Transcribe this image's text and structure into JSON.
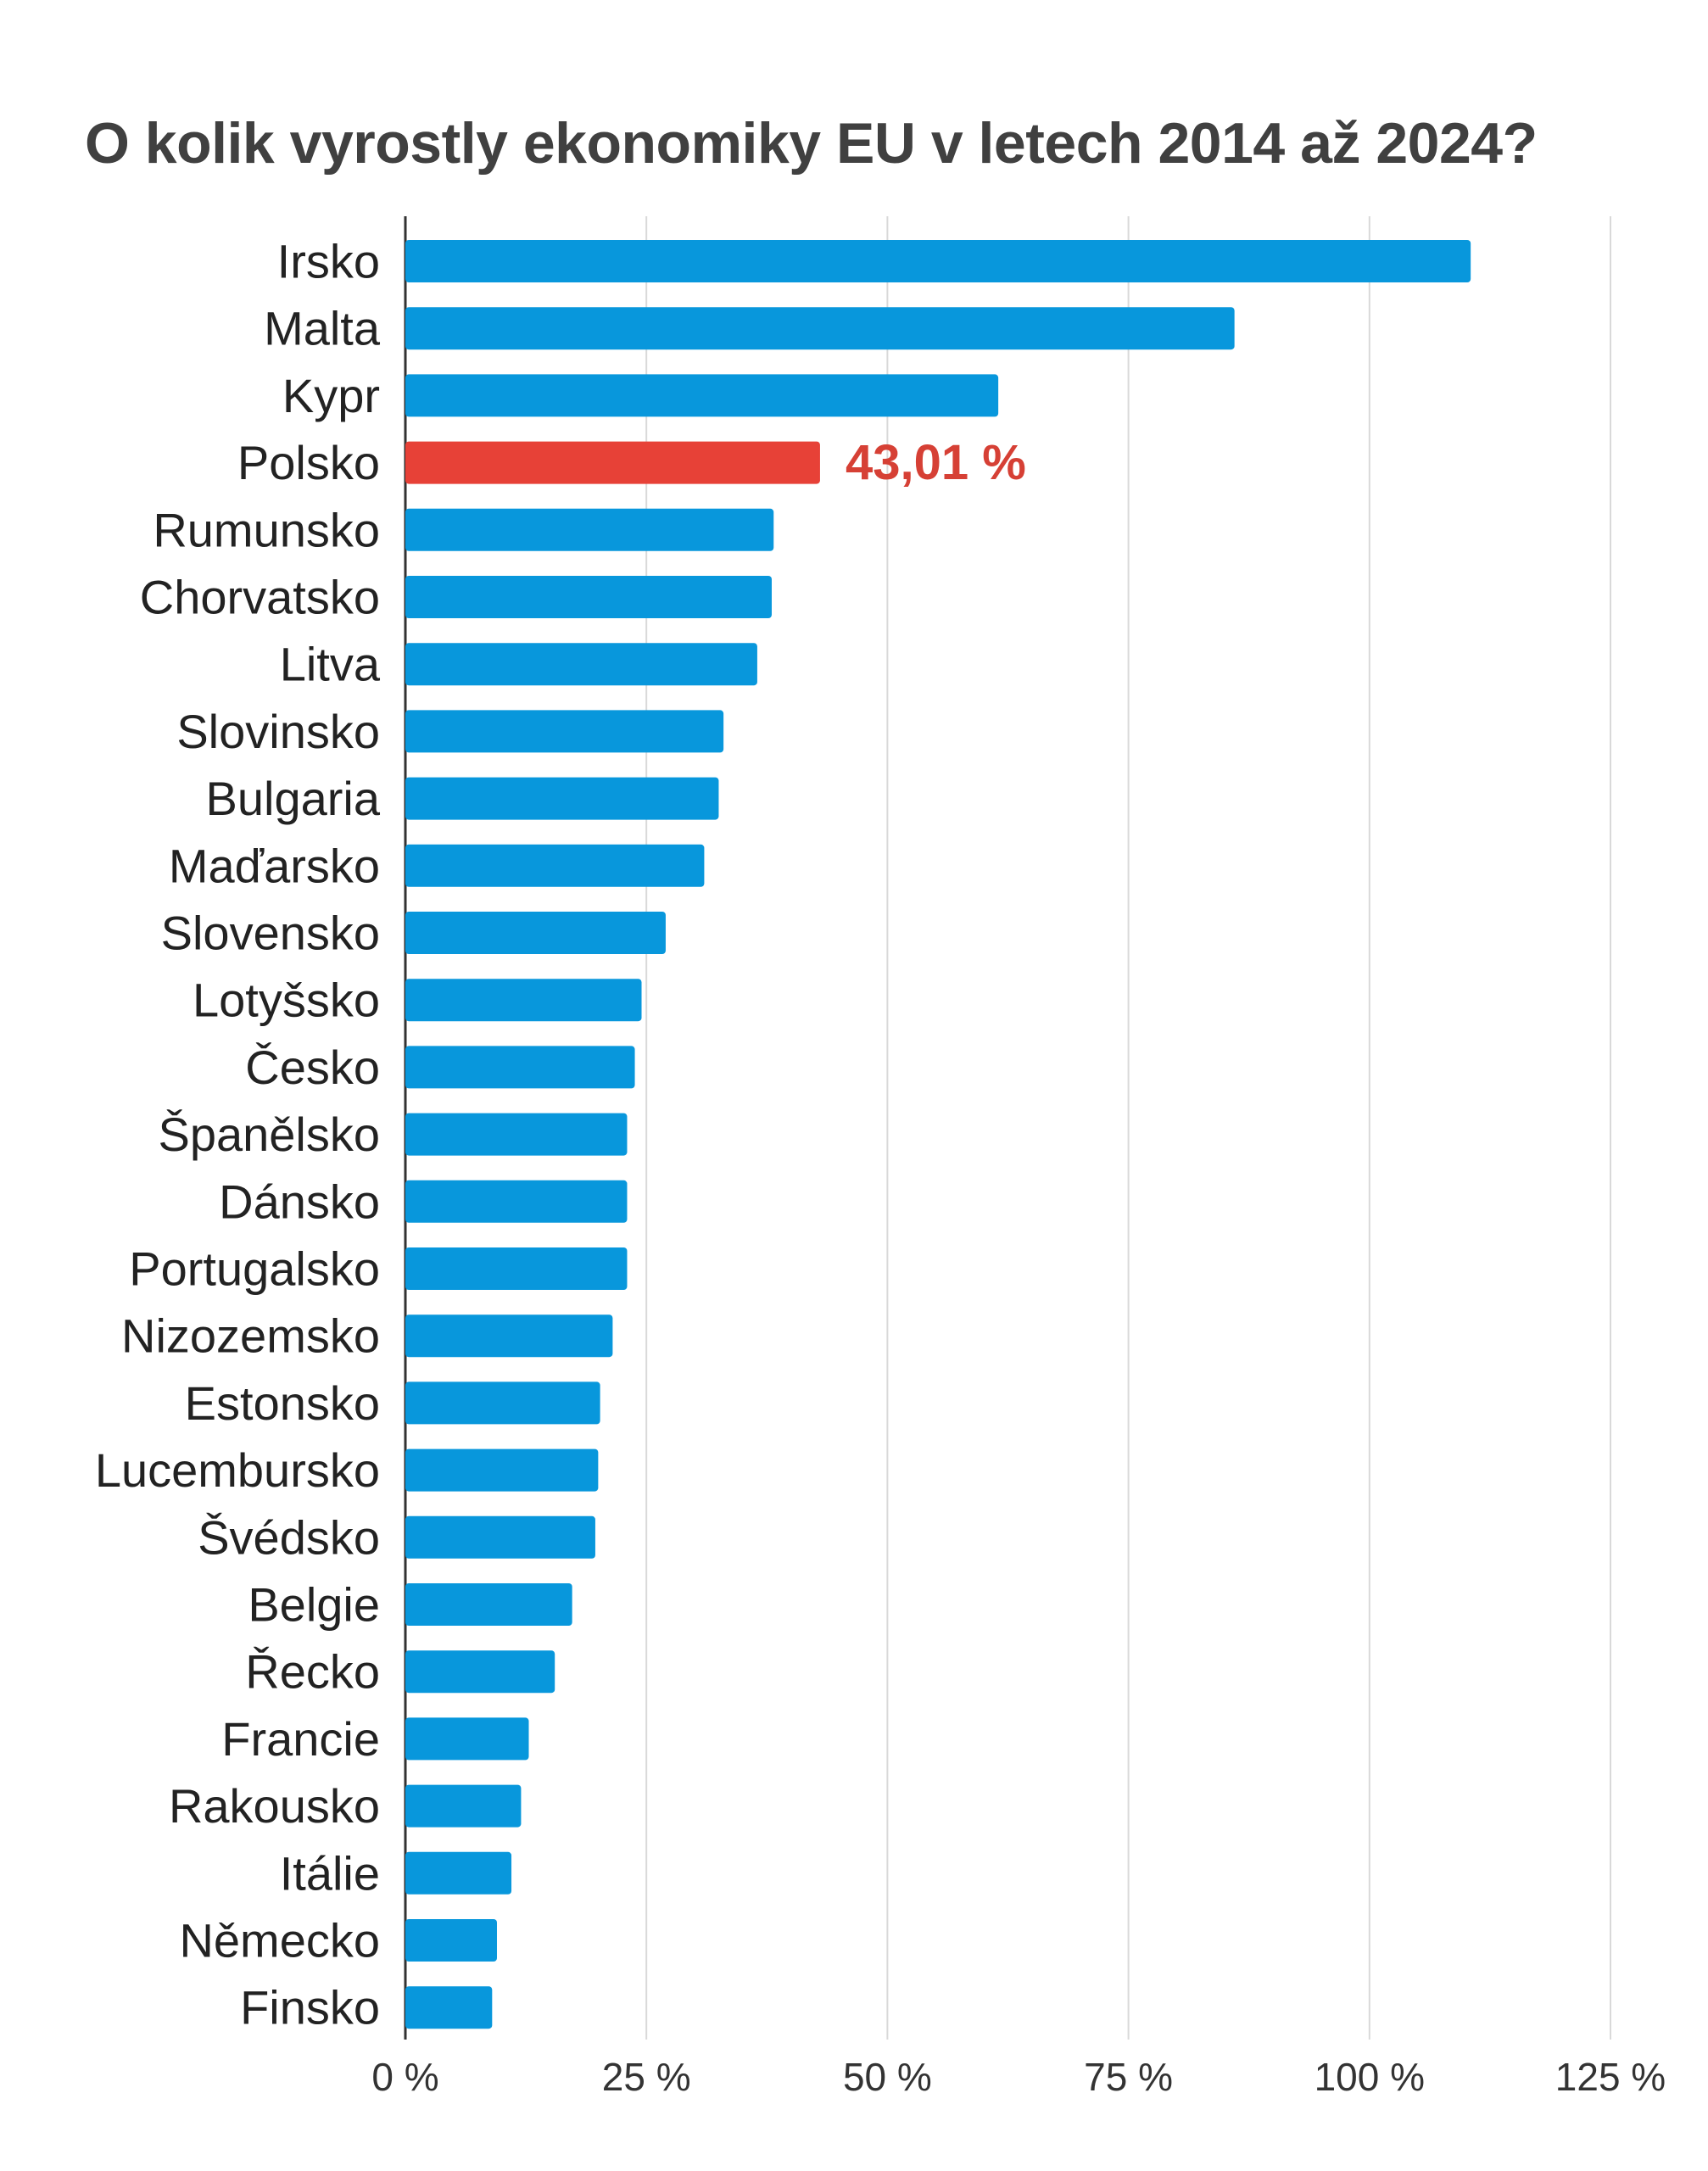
{
  "chart_data": {
    "type": "bar",
    "orientation": "horizontal",
    "title": "O kolik vyrostly ekonomiky EU v letech 2014 až 2024?",
    "categories": [
      "Irsko",
      "Malta",
      "Kypr",
      "Polsko",
      "Rumunsko",
      "Chorvatsko",
      "Litva",
      "Slovinsko",
      "Bulgaria",
      "Maďarsko",
      "Slovensko",
      "Lotyšsko",
      "Česko",
      "Španělsko",
      "Dánsko",
      "Portugalsko",
      "Nizozemsko",
      "Estonsko",
      "Lucembursko",
      "Švédsko",
      "Belgie",
      "Řecko",
      "Francie",
      "Rakousko",
      "Itálie",
      "Německo",
      "Finsko"
    ],
    "values": [
      110.5,
      86.0,
      61.5,
      43.01,
      38.2,
      38.0,
      36.5,
      33.0,
      32.5,
      31.0,
      27.0,
      24.5,
      23.8,
      23.0,
      23.0,
      23.0,
      21.5,
      20.2,
      20.0,
      19.7,
      17.3,
      15.5,
      12.8,
      12.0,
      11.0,
      9.5,
      9.0
    ],
    "highlight_index": 3,
    "data_labels": [
      {
        "index": 3,
        "text": "43,01 %"
      }
    ],
    "xlim": [
      0,
      125
    ],
    "x_ticks": [
      0,
      25,
      50,
      75,
      100,
      125
    ],
    "x_tick_labels": [
      "0 %",
      "25 %",
      "50 %",
      "75 %",
      "100 %",
      "125 %"
    ],
    "grid": true,
    "colors": {
      "bar": "#0897dc",
      "highlight": "#e74137",
      "highlight_label": "#d64035",
      "grid": "#d9d9d9",
      "axis": "#333333"
    }
  }
}
